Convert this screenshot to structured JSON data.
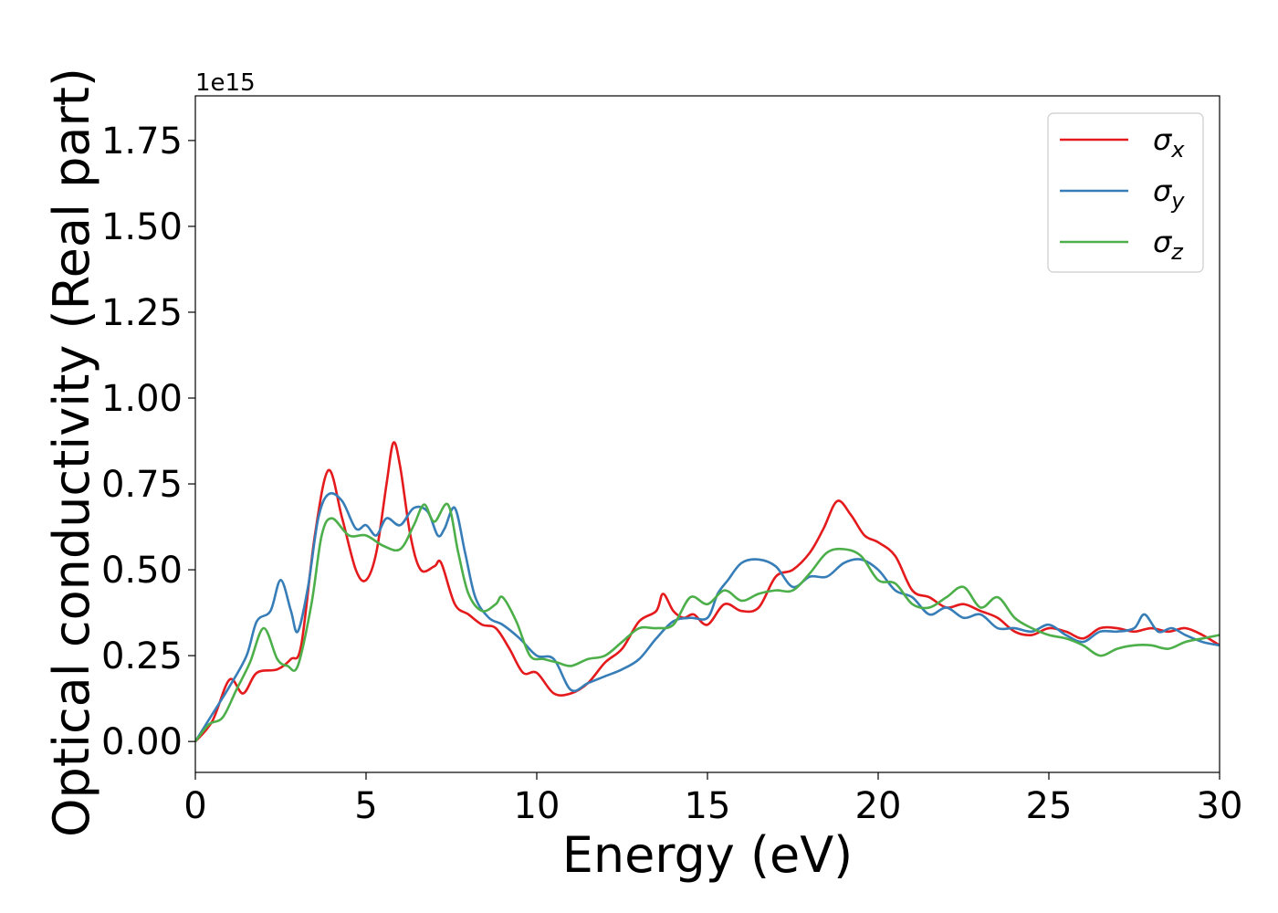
{
  "chart_data": {
    "type": "line",
    "xlabel": "Energy (eV)",
    "ylabel": "Optical conductivity (Real part)",
    "y_offset_text": "1e15",
    "xlim": [
      0,
      30
    ],
    "ylim": [
      -0.09,
      1.88
    ],
    "xticks": [
      0,
      5,
      10,
      15,
      20,
      25,
      30
    ],
    "xtick_labels": [
      "0",
      "5",
      "10",
      "15",
      "20",
      "25",
      "30"
    ],
    "yticks": [
      0.0,
      0.25,
      0.5,
      0.75,
      1.0,
      1.25,
      1.5,
      1.75
    ],
    "ytick_labels": [
      "0.00",
      "0.25",
      "0.50",
      "0.75",
      "1.00",
      "1.25",
      "1.50",
      "1.75"
    ],
    "grid": false,
    "legend_position": "top-right",
    "series": [
      {
        "name": "σ",
        "subscript": "x",
        "color": "#e41a1c",
        "points": [
          [
            0,
            0
          ],
          [
            0.5,
            0.06
          ],
          [
            1.0,
            0.18
          ],
          [
            1.4,
            0.14
          ],
          [
            1.8,
            0.2
          ],
          [
            2.4,
            0.21
          ],
          [
            2.8,
            0.24
          ],
          [
            3.1,
            0.28
          ],
          [
            3.5,
            0.6
          ],
          [
            3.9,
            0.79
          ],
          [
            4.3,
            0.65
          ],
          [
            4.7,
            0.5
          ],
          [
            5.0,
            0.47
          ],
          [
            5.3,
            0.55
          ],
          [
            5.6,
            0.75
          ],
          [
            5.8,
            0.87
          ],
          [
            6.0,
            0.8
          ],
          [
            6.3,
            0.6
          ],
          [
            6.6,
            0.5
          ],
          [
            7.0,
            0.51
          ],
          [
            7.2,
            0.52
          ],
          [
            7.6,
            0.4
          ],
          [
            8.0,
            0.37
          ],
          [
            8.4,
            0.34
          ],
          [
            8.8,
            0.33
          ],
          [
            9.2,
            0.27
          ],
          [
            9.6,
            0.2
          ],
          [
            10.0,
            0.2
          ],
          [
            10.5,
            0.14
          ],
          [
            11.0,
            0.14
          ],
          [
            11.5,
            0.17
          ],
          [
            12.0,
            0.23
          ],
          [
            12.5,
            0.27
          ],
          [
            13.0,
            0.35
          ],
          [
            13.5,
            0.38
          ],
          [
            13.7,
            0.43
          ],
          [
            14.0,
            0.38
          ],
          [
            14.3,
            0.36
          ],
          [
            14.6,
            0.37
          ],
          [
            15.0,
            0.34
          ],
          [
            15.5,
            0.4
          ],
          [
            16.0,
            0.38
          ],
          [
            16.5,
            0.39
          ],
          [
            17.0,
            0.48
          ],
          [
            17.5,
            0.5
          ],
          [
            18.0,
            0.55
          ],
          [
            18.4,
            0.62
          ],
          [
            18.8,
            0.7
          ],
          [
            19.2,
            0.66
          ],
          [
            19.6,
            0.6
          ],
          [
            20.0,
            0.58
          ],
          [
            20.5,
            0.54
          ],
          [
            21.0,
            0.44
          ],
          [
            21.5,
            0.42
          ],
          [
            22.0,
            0.39
          ],
          [
            22.5,
            0.4
          ],
          [
            23.0,
            0.38
          ],
          [
            23.5,
            0.36
          ],
          [
            24.0,
            0.32
          ],
          [
            24.5,
            0.31
          ],
          [
            25.0,
            0.33
          ],
          [
            25.5,
            0.32
          ],
          [
            26.0,
            0.3
          ],
          [
            26.5,
            0.33
          ],
          [
            27.0,
            0.33
          ],
          [
            27.5,
            0.32
          ],
          [
            28.0,
            0.33
          ],
          [
            28.5,
            0.32
          ],
          [
            29.0,
            0.33
          ],
          [
            29.5,
            0.31
          ],
          [
            30.0,
            0.28
          ]
        ]
      },
      {
        "name": "σ",
        "subscript": "y",
        "color": "#377eb8",
        "points": [
          [
            0,
            0
          ],
          [
            0.5,
            0.08
          ],
          [
            1.0,
            0.16
          ],
          [
            1.5,
            0.25
          ],
          [
            1.8,
            0.35
          ],
          [
            2.2,
            0.38
          ],
          [
            2.5,
            0.47
          ],
          [
            2.8,
            0.38
          ],
          [
            3.0,
            0.32
          ],
          [
            3.3,
            0.45
          ],
          [
            3.6,
            0.65
          ],
          [
            3.9,
            0.72
          ],
          [
            4.3,
            0.7
          ],
          [
            4.7,
            0.62
          ],
          [
            5.0,
            0.63
          ],
          [
            5.3,
            0.6
          ],
          [
            5.6,
            0.65
          ],
          [
            6.0,
            0.63
          ],
          [
            6.4,
            0.68
          ],
          [
            6.8,
            0.67
          ],
          [
            7.1,
            0.6
          ],
          [
            7.3,
            0.62
          ],
          [
            7.6,
            0.68
          ],
          [
            7.9,
            0.55
          ],
          [
            8.2,
            0.42
          ],
          [
            8.6,
            0.36
          ],
          [
            9.0,
            0.34
          ],
          [
            9.5,
            0.3
          ],
          [
            10.0,
            0.25
          ],
          [
            10.5,
            0.24
          ],
          [
            11.0,
            0.15
          ],
          [
            11.5,
            0.17
          ],
          [
            12.0,
            0.19
          ],
          [
            12.5,
            0.21
          ],
          [
            13.0,
            0.24
          ],
          [
            13.5,
            0.3
          ],
          [
            14.0,
            0.35
          ],
          [
            14.5,
            0.36
          ],
          [
            15.0,
            0.36
          ],
          [
            15.3,
            0.43
          ],
          [
            15.6,
            0.47
          ],
          [
            16.0,
            0.52
          ],
          [
            16.5,
            0.53
          ],
          [
            17.0,
            0.51
          ],
          [
            17.5,
            0.45
          ],
          [
            18.0,
            0.48
          ],
          [
            18.5,
            0.48
          ],
          [
            19.0,
            0.52
          ],
          [
            19.5,
            0.53
          ],
          [
            20.0,
            0.5
          ],
          [
            20.5,
            0.44
          ],
          [
            21.0,
            0.42
          ],
          [
            21.5,
            0.37
          ],
          [
            22.0,
            0.39
          ],
          [
            22.5,
            0.36
          ],
          [
            23.0,
            0.37
          ],
          [
            23.5,
            0.33
          ],
          [
            24.0,
            0.33
          ],
          [
            24.5,
            0.32
          ],
          [
            25.0,
            0.34
          ],
          [
            25.5,
            0.31
          ],
          [
            26.0,
            0.29
          ],
          [
            26.5,
            0.32
          ],
          [
            27.0,
            0.32
          ],
          [
            27.5,
            0.33
          ],
          [
            27.8,
            0.37
          ],
          [
            28.2,
            0.32
          ],
          [
            28.6,
            0.33
          ],
          [
            29.0,
            0.31
          ],
          [
            29.5,
            0.29
          ],
          [
            30.0,
            0.28
          ]
        ]
      },
      {
        "name": "σ",
        "subscript": "z",
        "color": "#4daf4a",
        "points": [
          [
            0,
            0
          ],
          [
            0.4,
            0.05
          ],
          [
            0.8,
            0.07
          ],
          [
            1.2,
            0.15
          ],
          [
            1.6,
            0.23
          ],
          [
            2.0,
            0.33
          ],
          [
            2.4,
            0.24
          ],
          [
            2.7,
            0.22
          ],
          [
            3.0,
            0.22
          ],
          [
            3.4,
            0.4
          ],
          [
            3.7,
            0.6
          ],
          [
            4.0,
            0.65
          ],
          [
            4.5,
            0.6
          ],
          [
            5.0,
            0.6
          ],
          [
            5.5,
            0.57
          ],
          [
            6.0,
            0.56
          ],
          [
            6.4,
            0.63
          ],
          [
            6.7,
            0.69
          ],
          [
            7.0,
            0.64
          ],
          [
            7.4,
            0.69
          ],
          [
            7.7,
            0.55
          ],
          [
            8.0,
            0.43
          ],
          [
            8.4,
            0.38
          ],
          [
            8.8,
            0.4
          ],
          [
            9.0,
            0.42
          ],
          [
            9.4,
            0.35
          ],
          [
            9.8,
            0.25
          ],
          [
            10.2,
            0.24
          ],
          [
            10.6,
            0.23
          ],
          [
            11.0,
            0.22
          ],
          [
            11.5,
            0.24
          ],
          [
            12.0,
            0.25
          ],
          [
            12.5,
            0.29
          ],
          [
            13.0,
            0.33
          ],
          [
            13.5,
            0.33
          ],
          [
            14.0,
            0.34
          ],
          [
            14.5,
            0.42
          ],
          [
            15.0,
            0.4
          ],
          [
            15.5,
            0.44
          ],
          [
            16.0,
            0.41
          ],
          [
            16.5,
            0.43
          ],
          [
            17.0,
            0.44
          ],
          [
            17.5,
            0.44
          ],
          [
            18.0,
            0.49
          ],
          [
            18.5,
            0.55
          ],
          [
            19.0,
            0.56
          ],
          [
            19.5,
            0.54
          ],
          [
            20.0,
            0.47
          ],
          [
            20.5,
            0.46
          ],
          [
            21.0,
            0.4
          ],
          [
            21.5,
            0.39
          ],
          [
            22.0,
            0.42
          ],
          [
            22.5,
            0.45
          ],
          [
            23.0,
            0.39
          ],
          [
            23.5,
            0.42
          ],
          [
            24.0,
            0.36
          ],
          [
            24.5,
            0.33
          ],
          [
            25.0,
            0.31
          ],
          [
            25.5,
            0.3
          ],
          [
            26.0,
            0.28
          ],
          [
            26.5,
            0.25
          ],
          [
            27.0,
            0.27
          ],
          [
            27.5,
            0.28
          ],
          [
            28.0,
            0.28
          ],
          [
            28.5,
            0.27
          ],
          [
            29.0,
            0.29
          ],
          [
            29.5,
            0.3
          ],
          [
            30.0,
            0.31
          ]
        ]
      }
    ]
  }
}
